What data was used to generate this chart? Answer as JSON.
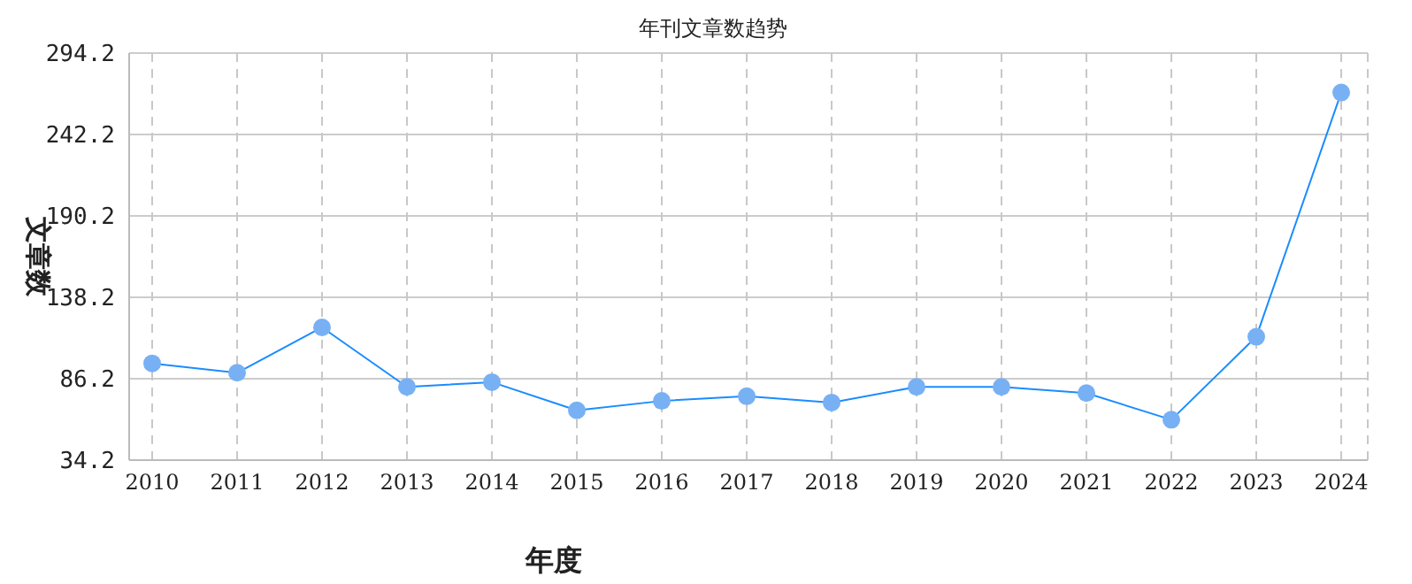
{
  "chart_data": {
    "type": "line",
    "title": "年刊文章数趋势",
    "xlabel": "年度",
    "ylabel": "文章数",
    "categories": [
      "2010",
      "2011",
      "2012",
      "2013",
      "2014",
      "2015",
      "2016",
      "2017",
      "2018",
      "2019",
      "2020",
      "2021",
      "2022",
      "2023",
      "2024"
    ],
    "series": [
      {
        "color": "#1a8cff",
        "values": [
          96,
          90,
          119,
          81,
          84,
          66,
          72,
          75,
          71,
          81,
          81,
          77,
          60,
          113,
          269
        ]
      }
    ],
    "ylim": [
      34.2,
      294.2
    ],
    "yticks": [
      34.2,
      86.2,
      138.2,
      190.2,
      242.2,
      294.2
    ],
    "grid": true,
    "marker": "circle",
    "line_style": "solid"
  }
}
